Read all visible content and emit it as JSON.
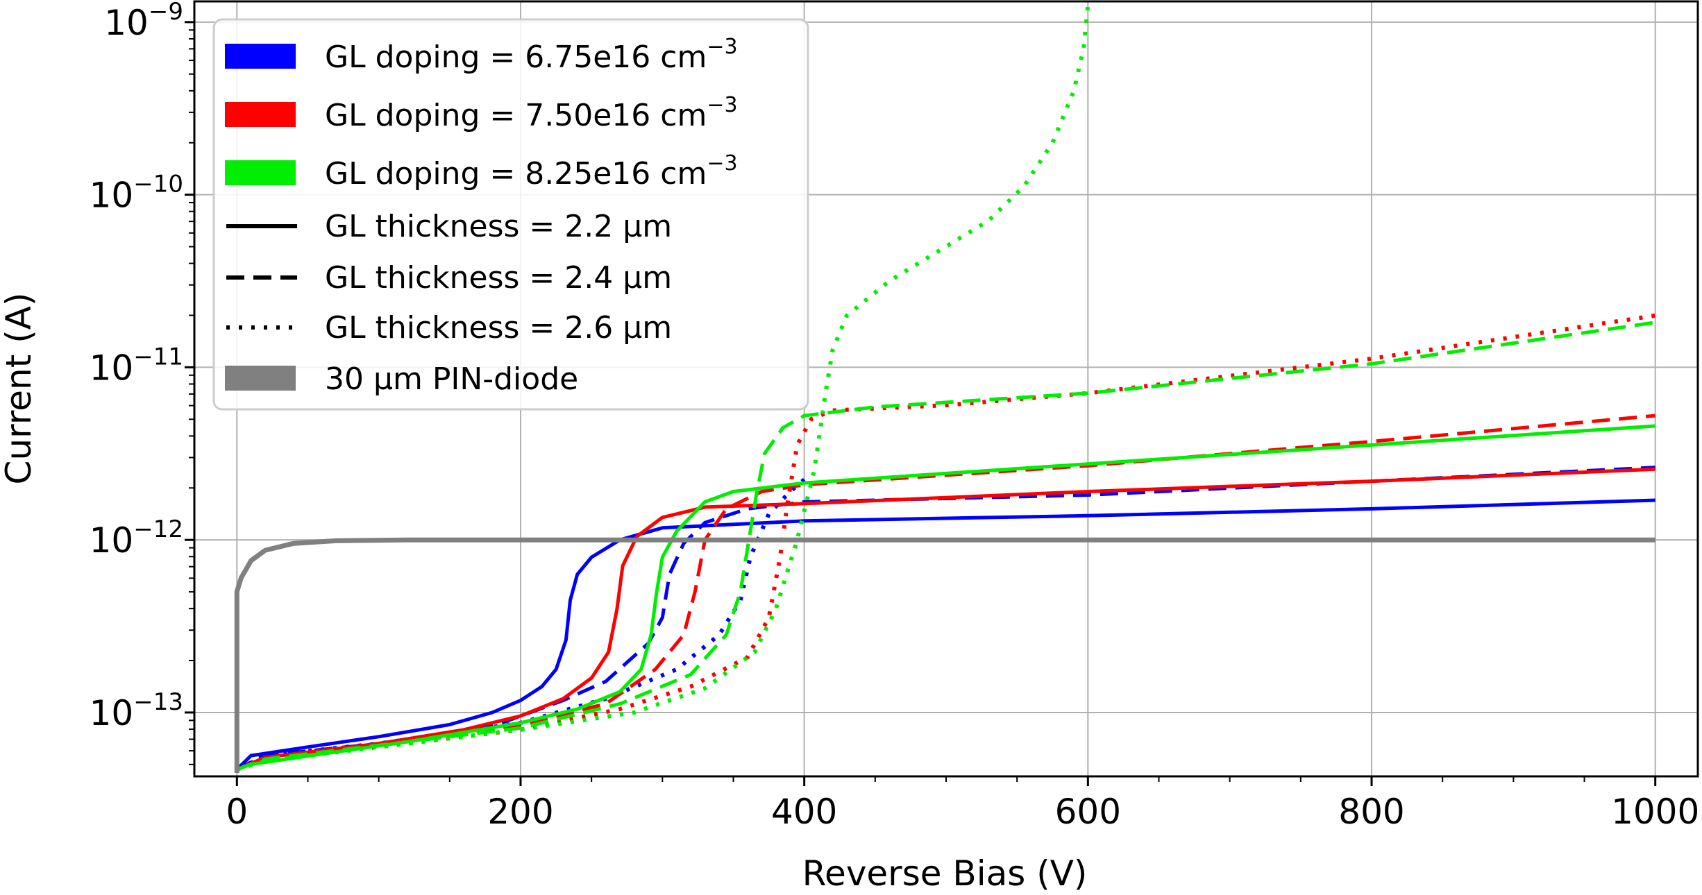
{
  "chart_data": {
    "type": "line",
    "xlabel": "Reverse Bias (V)",
    "ylabel": "Current (A)",
    "xlim": [
      -30,
      1030
    ],
    "ylim_log10": [
      -13.37,
      -8.88
    ],
    "y_scale": "log",
    "grid": true,
    "legend_position": "top-left",
    "x_ticks": [
      {
        "value": 0,
        "label": "0"
      },
      {
        "value": 200,
        "label": "200"
      },
      {
        "value": 400,
        "label": "400"
      },
      {
        "value": 600,
        "label": "600"
      },
      {
        "value": 800,
        "label": "800"
      },
      {
        "value": 1000,
        "label": "1000"
      }
    ],
    "y_ticks": [
      {
        "exp": -13,
        "base": "10",
        "sup": "−13"
      },
      {
        "exp": -12,
        "base": "10",
        "sup": "−12"
      },
      {
        "exp": -11,
        "base": "10",
        "sup": "−11"
      },
      {
        "exp": -10,
        "base": "10",
        "sup": "−10"
      },
      {
        "exp": -9,
        "base": "10",
        "sup": "−9"
      }
    ],
    "legend": [
      {
        "label": "GL doping = 6.75e16 cm",
        "sup": "−3",
        "kind": "color",
        "color": "#0000ff"
      },
      {
        "label": "GL doping = 7.50e16 cm",
        "sup": "−3",
        "kind": "color",
        "color": "#ff0000"
      },
      {
        "label": "GL doping = 8.25e16 cm",
        "sup": "−3",
        "kind": "color",
        "color": "#00ee00"
      },
      {
        "label": "GL thickness = 2.2 µm",
        "sup": "",
        "kind": "style",
        "style": "solid"
      },
      {
        "label": "GL thickness = 2.4 µm",
        "sup": "",
        "kind": "style",
        "style": "dashed"
      },
      {
        "label": "GL thickness = 2.6 µm",
        "sup": "",
        "kind": "style",
        "style": "dotted"
      },
      {
        "label": "30 µm PIN-diode",
        "sup": "",
        "kind": "color",
        "color": "#808080"
      }
    ],
    "series": [
      {
        "name": "PIN-diode 30 um",
        "color": "#808080",
        "style": "solid",
        "width": 7,
        "points": [
          [
            0,
            -13.35
          ],
          [
            0,
            -12.3
          ],
          [
            3,
            -12.22
          ],
          [
            10,
            -12.12
          ],
          [
            20,
            -12.06
          ],
          [
            40,
            -12.02
          ],
          [
            70,
            -12.005
          ],
          [
            120,
            -12.0
          ],
          [
            1000,
            -12.0
          ]
        ]
      },
      {
        "name": "doping 6.75e16, 2.2 um",
        "color": "#0000ff",
        "style": "solid",
        "width": 5,
        "points": [
          [
            0,
            -13.33
          ],
          [
            10,
            -13.25
          ],
          [
            50,
            -13.2
          ],
          [
            100,
            -13.14
          ],
          [
            150,
            -13.07
          ],
          [
            180,
            -13.0
          ],
          [
            200,
            -12.93
          ],
          [
            215,
            -12.85
          ],
          [
            225,
            -12.75
          ],
          [
            232,
            -12.58
          ],
          [
            235,
            -12.35
          ],
          [
            240,
            -12.2
          ],
          [
            250,
            -12.1
          ],
          [
            270,
            -12.0
          ],
          [
            300,
            -11.93
          ],
          [
            400,
            -11.89
          ],
          [
            600,
            -11.86
          ],
          [
            800,
            -11.82
          ],
          [
            1000,
            -11.77
          ]
        ]
      },
      {
        "name": "doping 6.75e16, 2.4 um",
        "color": "#0000ff",
        "style": "dashed",
        "width": 5,
        "points": [
          [
            0,
            -13.33
          ],
          [
            20,
            -13.25
          ],
          [
            100,
            -13.18
          ],
          [
            180,
            -13.08
          ],
          [
            230,
            -12.93
          ],
          [
            260,
            -12.82
          ],
          [
            290,
            -12.6
          ],
          [
            300,
            -12.45
          ],
          [
            305,
            -12.2
          ],
          [
            315,
            -12.02
          ],
          [
            330,
            -11.9
          ],
          [
            360,
            -11.82
          ],
          [
            400,
            -11.78
          ],
          [
            600,
            -11.74
          ],
          [
            800,
            -11.66
          ],
          [
            1000,
            -11.58
          ]
        ]
      },
      {
        "name": "doping 6.75e16, 2.6 um",
        "color": "#0000ff",
        "style": "dotted",
        "width": 6,
        "points": [
          [
            0,
            -13.33
          ],
          [
            20,
            -13.25
          ],
          [
            100,
            -13.18
          ],
          [
            200,
            -13.06
          ],
          [
            260,
            -12.92
          ],
          [
            310,
            -12.75
          ],
          [
            340,
            -12.55
          ],
          [
            355,
            -12.35
          ],
          [
            362,
            -12.1
          ],
          [
            375,
            -11.85
          ],
          [
            390,
            -11.72
          ],
          [
            400,
            -11.65
          ]
        ]
      },
      {
        "name": "doping 7.50e16, 2.2 um",
        "color": "#ff0000",
        "style": "solid",
        "width": 5,
        "points": [
          [
            0,
            -13.33
          ],
          [
            20,
            -13.26
          ],
          [
            100,
            -13.18
          ],
          [
            160,
            -13.1
          ],
          [
            200,
            -13.02
          ],
          [
            230,
            -12.92
          ],
          [
            250,
            -12.8
          ],
          [
            262,
            -12.65
          ],
          [
            268,
            -12.4
          ],
          [
            272,
            -12.15
          ],
          [
            282,
            -11.98
          ],
          [
            300,
            -11.87
          ],
          [
            330,
            -11.81
          ],
          [
            400,
            -11.79
          ],
          [
            600,
            -11.72
          ],
          [
            800,
            -11.66
          ],
          [
            1000,
            -11.59
          ]
        ]
      },
      {
        "name": "doping 7.50e16, 2.4 um",
        "color": "#ff0000",
        "style": "dashed",
        "width": 5,
        "points": [
          [
            0,
            -13.33
          ],
          [
            20,
            -13.26
          ],
          [
            100,
            -13.19
          ],
          [
            200,
            -13.07
          ],
          [
            260,
            -12.95
          ],
          [
            295,
            -12.75
          ],
          [
            315,
            -12.55
          ],
          [
            323,
            -12.3
          ],
          [
            330,
            -12.0
          ],
          [
            345,
            -11.82
          ],
          [
            370,
            -11.72
          ],
          [
            400,
            -11.68
          ],
          [
            600,
            -11.57
          ],
          [
            800,
            -11.43
          ],
          [
            1000,
            -11.28
          ]
        ]
      },
      {
        "name": "doping 7.50e16, 2.6 um",
        "color": "#ff0000",
        "style": "dotted",
        "width": 6,
        "points": [
          [
            0,
            -13.33
          ],
          [
            20,
            -13.27
          ],
          [
            100,
            -13.2
          ],
          [
            200,
            -13.1
          ],
          [
            270,
            -12.98
          ],
          [
            320,
            -12.85
          ],
          [
            360,
            -12.68
          ],
          [
            375,
            -12.45
          ],
          [
            383,
            -12.1
          ],
          [
            388,
            -11.8
          ],
          [
            395,
            -11.45
          ],
          [
            405,
            -11.3
          ],
          [
            420,
            -11.25
          ],
          [
            500,
            -11.22
          ],
          [
            600,
            -11.15
          ],
          [
            800,
            -10.95
          ],
          [
            1000,
            -10.7
          ]
        ]
      },
      {
        "name": "doping 8.25e16, 2.2 um",
        "color": "#00ee00",
        "style": "solid",
        "width": 5,
        "points": [
          [
            0,
            -13.33
          ],
          [
            10,
            -13.3
          ],
          [
            60,
            -13.24
          ],
          [
            120,
            -13.17
          ],
          [
            200,
            -13.06
          ],
          [
            240,
            -12.98
          ],
          [
            270,
            -12.88
          ],
          [
            285,
            -12.75
          ],
          [
            292,
            -12.55
          ],
          [
            296,
            -12.3
          ],
          [
            300,
            -12.1
          ],
          [
            310,
            -11.95
          ],
          [
            330,
            -11.78
          ],
          [
            350,
            -11.72
          ],
          [
            400,
            -11.67
          ],
          [
            600,
            -11.56
          ],
          [
            800,
            -11.45
          ],
          [
            1000,
            -11.34
          ]
        ]
      },
      {
        "name": "doping 8.25e16, 2.4 um",
        "color": "#00ee00",
        "style": "dashed",
        "width": 5,
        "points": [
          [
            0,
            -13.33
          ],
          [
            20,
            -13.27
          ],
          [
            100,
            -13.19
          ],
          [
            200,
            -13.09
          ],
          [
            270,
            -12.95
          ],
          [
            320,
            -12.78
          ],
          [
            345,
            -12.55
          ],
          [
            355,
            -12.3
          ],
          [
            360,
            -12.05
          ],
          [
            366,
            -11.75
          ],
          [
            372,
            -11.5
          ],
          [
            385,
            -11.35
          ],
          [
            400,
            -11.28
          ],
          [
            450,
            -11.23
          ],
          [
            600,
            -11.15
          ],
          [
            800,
            -10.98
          ],
          [
            1000,
            -10.74
          ]
        ]
      },
      {
        "name": "doping 8.25e16, 2.6 um",
        "color": "#00ee00",
        "style": "dotted",
        "width": 6,
        "points": [
          [
            0,
            -13.33
          ],
          [
            20,
            -13.28
          ],
          [
            100,
            -13.2
          ],
          [
            200,
            -13.1
          ],
          [
            280,
            -13.0
          ],
          [
            330,
            -12.86
          ],
          [
            365,
            -12.65
          ],
          [
            380,
            -12.4
          ],
          [
            395,
            -12.0
          ],
          [
            407,
            -11.6
          ],
          [
            415,
            -11.15
          ],
          [
            420,
            -10.9
          ],
          [
            430,
            -10.7
          ],
          [
            460,
            -10.5
          ],
          [
            500,
            -10.3
          ],
          [
            530,
            -10.15
          ],
          [
            555,
            -9.95
          ],
          [
            575,
            -9.7
          ],
          [
            590,
            -9.4
          ],
          [
            597,
            -9.15
          ],
          [
            600,
            -8.9
          ]
        ]
      }
    ]
  }
}
